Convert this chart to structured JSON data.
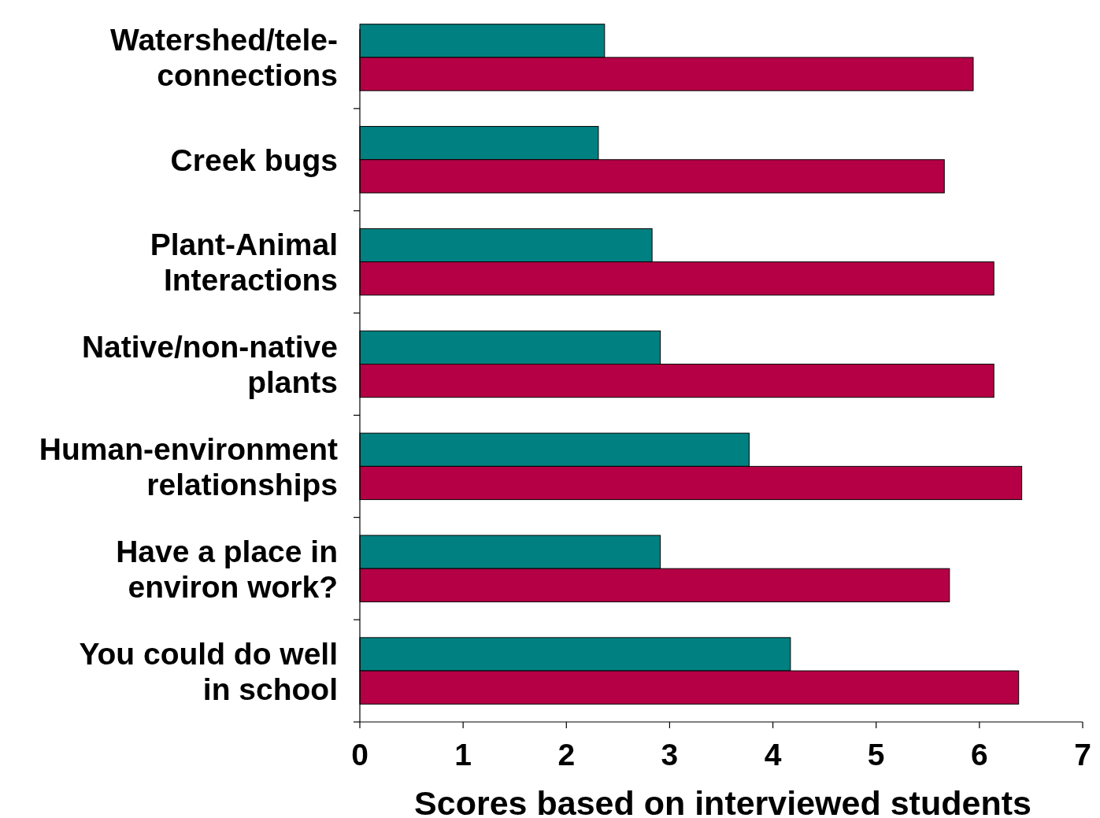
{
  "chart_data": {
    "type": "bar",
    "orientation": "horizontal",
    "xlabel": "Scores based on interviewed students",
    "categories": [
      "Watershed/tele-\nconnections",
      "Creek bugs",
      "Plant-Animal\nInteractions",
      "Native/non-native\nplants",
      "Human-environment\nrelationships",
      "Have a place in\nenviron work?",
      "You could do well\nin school"
    ],
    "series": [
      {
        "color": "#008080",
        "values": [
          2.37,
          2.31,
          2.83,
          2.91,
          3.77,
          2.91,
          4.17
        ]
      },
      {
        "color": "#b50045",
        "values": [
          5.94,
          5.66,
          6.14,
          6.14,
          6.41,
          5.71,
          6.38
        ]
      }
    ],
    "xlim": [
      0,
      7
    ],
    "xticks": [
      0,
      1,
      2,
      3,
      4,
      5,
      6,
      7
    ],
    "grid": false
  }
}
